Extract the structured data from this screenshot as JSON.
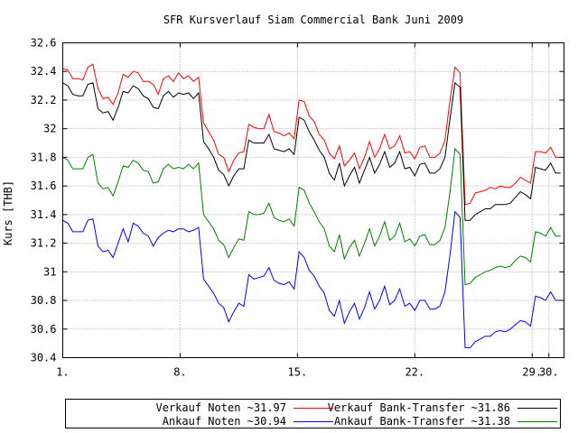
{
  "chart_data": {
    "type": "line",
    "title": "SFR Kursverlauf Siam Commercial Bank Juni 2009",
    "xlabel": "",
    "ylabel": "Kurs [THB]",
    "ylim": [
      30.4,
      32.6
    ],
    "yticks": [
      "30.4",
      "30.6",
      "30.8",
      "31",
      "31.2",
      "31.4",
      "31.6",
      "31.8",
      "32",
      "32.2",
      "32.4",
      "32.6"
    ],
    "xlim": [
      1,
      30.9
    ],
    "xticks": [
      {
        "value": 1,
        "label": "1."
      },
      {
        "value": 8,
        "label": "8."
      },
      {
        "value": 15,
        "label": "15."
      },
      {
        "value": 22,
        "label": "22."
      },
      {
        "value": 29,
        "label": "29."
      },
      {
        "value": 30,
        "label": "30."
      }
    ],
    "grid": true,
    "legend_position": "bottom",
    "x": [
      1.0,
      1.3,
      1.6,
      1.9,
      2.2,
      2.5,
      2.8,
      3.1,
      3.4,
      3.7,
      4.0,
      4.3,
      4.6,
      4.9,
      5.2,
      5.5,
      5.8,
      6.1,
      6.4,
      6.7,
      7.0,
      7.3,
      7.6,
      7.9,
      8.2,
      8.5,
      8.8,
      9.1,
      9.4,
      9.7,
      10.0,
      10.3,
      10.6,
      10.9,
      11.2,
      11.5,
      11.8,
      12.1,
      12.4,
      12.7,
      13.0,
      13.3,
      13.6,
      13.9,
      14.2,
      14.5,
      14.8,
      15.1,
      15.4,
      15.7,
      16.0,
      16.3,
      16.6,
      16.9,
      17.2,
      17.5,
      17.8,
      18.1,
      18.4,
      18.7,
      19.0,
      19.3,
      19.6,
      19.9,
      20.2,
      20.5,
      20.8,
      21.1,
      21.4,
      21.7,
      22.0,
      22.3,
      22.6,
      22.9,
      23.2,
      23.5,
      23.8,
      24.1,
      24.4,
      24.7,
      25.0,
      25.3,
      25.6,
      25.9,
      26.2,
      26.5,
      26.8,
      27.1,
      27.4,
      27.7,
      28.0,
      28.3,
      28.6,
      28.9,
      29.2,
      29.5,
      29.8,
      30.1,
      30.4,
      30.7
    ],
    "series": [
      {
        "name": "Verkauf Noten ~31.97",
        "color": "#ff0000",
        "values": [
          32.42,
          32.41,
          32.35,
          32.35,
          32.34,
          32.43,
          32.45,
          32.28,
          32.21,
          32.22,
          32.17,
          32.25,
          32.38,
          32.36,
          32.4,
          32.39,
          32.33,
          32.33,
          32.31,
          32.24,
          32.35,
          32.37,
          32.33,
          32.39,
          32.35,
          32.37,
          32.33,
          32.36,
          32.04,
          31.98,
          31.92,
          31.82,
          31.8,
          31.7,
          31.78,
          31.83,
          31.84,
          32.03,
          32.01,
          32.0,
          32.0,
          32.1,
          31.98,
          31.97,
          31.95,
          31.97,
          31.93,
          32.2,
          32.19,
          32.09,
          32.05,
          31.96,
          31.92,
          31.83,
          31.79,
          31.88,
          31.74,
          31.78,
          31.83,
          31.72,
          31.8,
          31.91,
          31.8,
          31.86,
          31.96,
          31.86,
          31.88,
          31.95,
          31.83,
          31.84,
          31.79,
          31.87,
          31.88,
          31.8,
          31.8,
          31.83,
          31.92,
          32.2,
          32.43,
          32.39,
          31.47,
          31.48,
          31.55,
          31.56,
          31.57,
          31.59,
          31.58,
          31.6,
          31.59,
          31.59,
          31.62,
          31.66,
          31.64,
          31.62,
          31.84,
          31.84,
          31.83,
          31.87,
          31.8,
          31.8
        ]
      },
      {
        "name": "Verkauf Bank-Transfer ~31.86",
        "color": "#000000",
        "values": [
          32.32,
          32.3,
          32.24,
          32.23,
          32.23,
          32.31,
          32.32,
          32.14,
          32.11,
          32.12,
          32.06,
          32.15,
          32.26,
          32.25,
          32.3,
          32.28,
          32.23,
          32.21,
          32.15,
          32.14,
          32.23,
          32.26,
          32.22,
          32.25,
          32.24,
          32.25,
          32.21,
          32.25,
          31.91,
          31.86,
          31.8,
          31.71,
          31.68,
          31.6,
          31.67,
          31.72,
          31.72,
          31.92,
          31.9,
          31.9,
          31.9,
          31.96,
          31.86,
          31.85,
          31.84,
          31.86,
          31.82,
          32.08,
          32.06,
          31.98,
          31.92,
          31.85,
          31.8,
          31.69,
          31.64,
          31.76,
          31.6,
          31.67,
          31.73,
          31.62,
          31.71,
          31.8,
          31.69,
          31.75,
          31.84,
          31.73,
          31.76,
          31.84,
          31.72,
          31.73,
          31.67,
          31.75,
          31.76,
          31.69,
          31.69,
          31.72,
          31.8,
          32.07,
          32.32,
          32.29,
          31.36,
          31.36,
          31.4,
          31.42,
          31.44,
          31.44,
          31.47,
          31.47,
          31.47,
          31.48,
          31.52,
          31.56,
          31.54,
          31.51,
          31.73,
          31.72,
          31.71,
          31.76,
          31.69,
          31.69
        ]
      },
      {
        "name": "Ankauf Noten ~30.94",
        "color": "#0000ff",
        "values": [
          31.36,
          31.34,
          31.28,
          31.28,
          31.28,
          31.36,
          31.37,
          31.18,
          31.14,
          31.15,
          31.1,
          31.2,
          31.3,
          31.21,
          31.34,
          31.32,
          31.27,
          31.25,
          31.18,
          31.24,
          31.27,
          31.29,
          31.28,
          31.3,
          31.3,
          31.28,
          31.29,
          31.31,
          30.95,
          30.9,
          30.85,
          30.78,
          30.75,
          30.65,
          30.72,
          30.78,
          30.76,
          30.98,
          30.95,
          30.96,
          30.97,
          31.03,
          30.94,
          30.92,
          30.91,
          30.93,
          30.88,
          31.14,
          31.1,
          31.01,
          30.97,
          30.9,
          30.85,
          30.73,
          30.69,
          30.8,
          30.64,
          30.72,
          30.78,
          30.67,
          30.75,
          30.86,
          30.74,
          30.8,
          30.9,
          30.77,
          30.8,
          30.88,
          30.76,
          30.78,
          30.73,
          30.8,
          30.8,
          30.74,
          30.74,
          30.76,
          30.86,
          31.12,
          31.42,
          31.38,
          30.47,
          30.47,
          30.51,
          30.53,
          30.55,
          30.55,
          30.58,
          30.59,
          30.58,
          30.6,
          30.63,
          30.66,
          30.65,
          30.62,
          30.83,
          30.82,
          30.8,
          30.86,
          30.8,
          30.8
        ]
      },
      {
        "name": "Ankauf Bank-Transfer ~31.38",
        "color": "#008000",
        "values": [
          31.8,
          31.78,
          31.72,
          31.72,
          31.72,
          31.8,
          31.82,
          31.62,
          31.58,
          31.59,
          31.53,
          31.63,
          31.74,
          31.73,
          31.78,
          31.76,
          31.71,
          31.7,
          31.62,
          31.63,
          31.72,
          31.75,
          31.72,
          31.73,
          31.72,
          31.75,
          31.72,
          31.76,
          31.4,
          31.35,
          31.3,
          31.22,
          31.19,
          31.1,
          31.17,
          31.23,
          31.22,
          31.42,
          31.4,
          31.4,
          31.41,
          31.48,
          31.38,
          31.36,
          31.35,
          31.37,
          31.32,
          31.59,
          31.57,
          31.48,
          31.42,
          31.35,
          31.3,
          31.18,
          31.14,
          31.26,
          31.09,
          31.17,
          31.22,
          31.11,
          31.2,
          31.3,
          31.18,
          31.25,
          31.35,
          31.22,
          31.25,
          31.34,
          31.21,
          31.23,
          31.18,
          31.25,
          31.26,
          31.19,
          31.19,
          31.22,
          31.31,
          31.56,
          31.86,
          31.82,
          30.91,
          30.92,
          30.96,
          30.98,
          31.0,
          31.01,
          31.03,
          31.04,
          31.03,
          31.04,
          31.08,
          31.11,
          31.1,
          31.07,
          31.28,
          31.27,
          31.25,
          31.31,
          31.25,
          31.25
        ]
      }
    ]
  },
  "legend": {
    "items": [
      {
        "label": "Verkauf Noten ~31.97",
        "color": "#ff0000"
      },
      {
        "label": "Verkauf Bank-Transfer ~31.86",
        "color": "#000000"
      },
      {
        "label": "Ankauf Noten ~30.94",
        "color": "#0000ff"
      },
      {
        "label": "Ankauf Bank-Transfer ~31.38",
        "color": "#008000"
      }
    ]
  }
}
